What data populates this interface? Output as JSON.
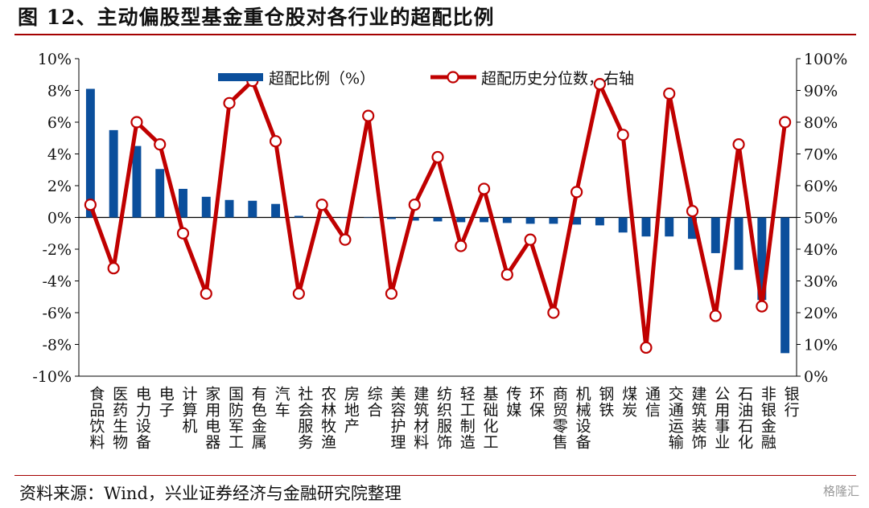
{
  "figure": {
    "title": "图 12、主动偏股型基金重仓股对各行业的超配比例",
    "source": "资料来源：Wind，兴业证券经济与金融研究院整理",
    "watermark": "格隆汇"
  },
  "chart_data": {
    "type": "bar+line",
    "categories": [
      "食品饮料",
      "医药生物",
      "电力设备",
      "电子",
      "计算机",
      "家用电器",
      "国防军工",
      "有色金属",
      "汽车",
      "社会服务",
      "农林牧渔",
      "房地产",
      "综合",
      "美容护理",
      "建筑材料",
      "纺织服饰",
      "轻工制造",
      "基础化工",
      "传媒",
      "环保",
      "商贸零售",
      "机械设备",
      "钢铁",
      "煤炭",
      "通信",
      "交通运输",
      "建筑装饰",
      "公用事业",
      "石油石化",
      "非银金融",
      "银行"
    ],
    "series": [
      {
        "name": "超配比例（%）",
        "type": "bar",
        "axis": "left",
        "color": "#0b4f9c",
        "values": [
          8.1,
          5.5,
          4.5,
          3.05,
          1.8,
          1.3,
          1.1,
          1.05,
          0.85,
          0.1,
          0.0,
          0.0,
          0.0,
          -0.1,
          -0.2,
          -0.25,
          -0.3,
          -0.3,
          -0.35,
          -0.4,
          -0.4,
          -0.45,
          -0.5,
          -0.95,
          -1.2,
          -1.2,
          -1.35,
          -2.25,
          -3.3,
          -5.2,
          -8.55
        ]
      },
      {
        "name": "超配历史分位数，右轴",
        "type": "line",
        "axis": "right",
        "color": "#c00000",
        "values": [
          54,
          34,
          80,
          73,
          45,
          26,
          86,
          93,
          74,
          26,
          54,
          43,
          82,
          26,
          54,
          69,
          41,
          59,
          32,
          43,
          20,
          58,
          92,
          76,
          9,
          89,
          52,
          19,
          73,
          22,
          80
        ]
      }
    ],
    "left_axis": {
      "min": -10,
      "max": 10,
      "step": 2,
      "format": "%"
    },
    "right_axis": {
      "min": 0,
      "max": 100,
      "step": 10,
      "format": "%"
    },
    "legend_position": "top"
  }
}
